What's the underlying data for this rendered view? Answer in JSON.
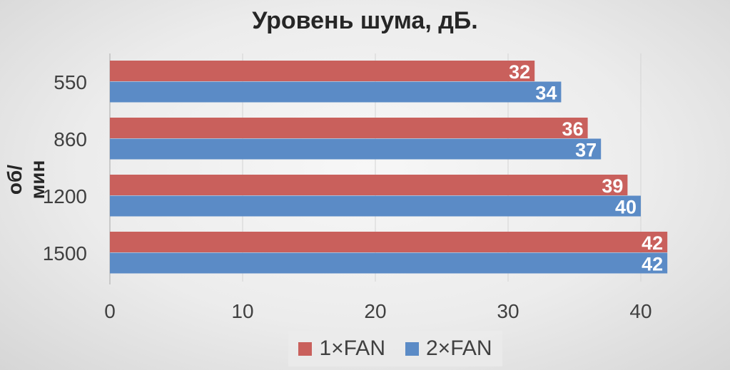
{
  "chart_data": {
    "type": "bar",
    "orientation": "horizontal",
    "title": "Уровень шума, дБ.",
    "ylabel": "об/мин",
    "xlabel": "",
    "categories": [
      "550",
      "860",
      "1200",
      "1500"
    ],
    "series": [
      {
        "name": "1×FAN",
        "color": "#c9605c",
        "values": [
          32,
          36,
          39,
          42
        ]
      },
      {
        "name": "2×FAN",
        "color": "#5b8bc6",
        "values": [
          34,
          37,
          40,
          42
        ]
      }
    ],
    "xlim": [
      0,
      45
    ],
    "xticks": [
      0,
      10,
      20,
      30,
      40
    ],
    "grid": true,
    "legend": "bottom"
  }
}
